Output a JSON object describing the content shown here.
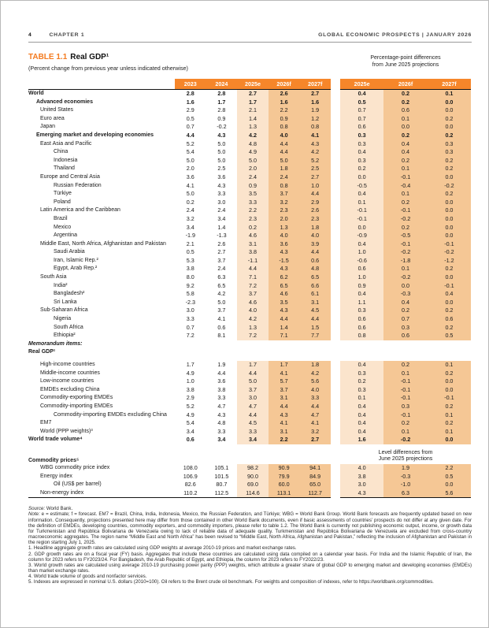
{
  "page_header": {
    "page_number": "4",
    "chapter": "CHAPTER 1",
    "report_title": "GLOBAL ECONOMIC PROSPECTS | JANUARY 2026"
  },
  "table": {
    "title_label": "TABLE 1.1",
    "title_text": "Real GDP¹",
    "subtitle": "(Percent change from previous year unless indicated otherwise)",
    "diff_header_line1": "Percentage-point differences",
    "diff_header_line2": "from June 2025 projections",
    "col_headers_main": [
      "2023",
      "2024",
      "2025e",
      "2026f",
      "2027f"
    ],
    "col_headers_diff": [
      "2025e",
      "2026f",
      "2027f"
    ],
    "rows": [
      {
        "kind": "data",
        "label": "World",
        "indent": 0,
        "bold": true,
        "values": [
          "2.8",
          "2.8",
          "2.7",
          "2.6",
          "2.7"
        ],
        "diffs": [
          "0.4",
          "0.2",
          "0.1"
        ]
      },
      {
        "kind": "data",
        "label": "Advanced economies",
        "indent": 1,
        "bold": true,
        "values": [
          "1.6",
          "1.7",
          "1.7",
          "1.6",
          "1.6"
        ],
        "diffs": [
          "0.5",
          "0.2",
          "0.0"
        ]
      },
      {
        "kind": "data",
        "label": "United States",
        "indent": 2,
        "bold": false,
        "values": [
          "2.9",
          "2.8",
          "2.1",
          "2.2",
          "1.9"
        ],
        "diffs": [
          "0.7",
          "0.6",
          "0.0"
        ]
      },
      {
        "kind": "data",
        "label": "Euro area",
        "indent": 2,
        "bold": false,
        "values": [
          "0.5",
          "0.9",
          "1.4",
          "0.9",
          "1.2"
        ],
        "diffs": [
          "0.7",
          "0.1",
          "0.2"
        ]
      },
      {
        "kind": "data",
        "label": "Japan",
        "indent": 2,
        "bold": false,
        "values": [
          "0.7",
          "-0.2",
          "1.3",
          "0.8",
          "0.8"
        ],
        "diffs": [
          "0.6",
          "0.0",
          "0.0"
        ]
      },
      {
        "kind": "data",
        "label": "Emerging market and developing economies",
        "indent": 1,
        "bold": true,
        "values": [
          "4.4",
          "4.3",
          "4.2",
          "4.0",
          "4.1"
        ],
        "diffs": [
          "0.3",
          "0.2",
          "0.2"
        ]
      },
      {
        "kind": "data",
        "label": "East Asia and Pacific",
        "indent": 2,
        "bold": false,
        "values": [
          "5.2",
          "5.0",
          "4.8",
          "4.4",
          "4.3"
        ],
        "diffs": [
          "0.3",
          "0.4",
          "0.3"
        ]
      },
      {
        "kind": "data",
        "label": "China",
        "indent": 3,
        "bold": false,
        "values": [
          "5.4",
          "5.0",
          "4.9",
          "4.4",
          "4.2"
        ],
        "diffs": [
          "0.4",
          "0.4",
          "0.3"
        ]
      },
      {
        "kind": "data",
        "label": "Indonesia",
        "indent": 3,
        "bold": false,
        "values": [
          "5.0",
          "5.0",
          "5.0",
          "5.0",
          "5.2"
        ],
        "diffs": [
          "0.3",
          "0.2",
          "0.2"
        ]
      },
      {
        "kind": "data",
        "label": "Thailand",
        "indent": 3,
        "bold": false,
        "values": [
          "2.0",
          "2.5",
          "2.0",
          "1.8",
          "2.5"
        ],
        "diffs": [
          "0.2",
          "0.1",
          "0.2"
        ]
      },
      {
        "kind": "data",
        "label": "Europe and Central Asia",
        "indent": 2,
        "bold": false,
        "values": [
          "3.6",
          "3.6",
          "2.4",
          "2.4",
          "2.7"
        ],
        "diffs": [
          "0.0",
          "-0.1",
          "0.0"
        ]
      },
      {
        "kind": "data",
        "label": "Russian Federation",
        "indent": 3,
        "bold": false,
        "values": [
          "4.1",
          "4.3",
          "0.9",
          "0.8",
          "1.0"
        ],
        "diffs": [
          "-0.5",
          "-0.4",
          "-0.2"
        ]
      },
      {
        "kind": "data",
        "label": "Türkiye",
        "indent": 3,
        "bold": false,
        "values": [
          "5.0",
          "3.3",
          "3.5",
          "3.7",
          "4.4"
        ],
        "diffs": [
          "0.4",
          "0.1",
          "0.2"
        ]
      },
      {
        "kind": "data",
        "label": "Poland",
        "indent": 3,
        "bold": false,
        "values": [
          "0.2",
          "3.0",
          "3.3",
          "3.2",
          "2.9"
        ],
        "diffs": [
          "0.1",
          "0.2",
          "0.0"
        ]
      },
      {
        "kind": "data",
        "label": "Latin America and the Caribbean",
        "indent": 2,
        "bold": false,
        "values": [
          "2.4",
          "2.4",
          "2.2",
          "2.3",
          "2.6"
        ],
        "diffs": [
          "-0.1",
          "-0.1",
          "0.0"
        ]
      },
      {
        "kind": "data",
        "label": "Brazil",
        "indent": 3,
        "bold": false,
        "values": [
          "3.2",
          "3.4",
          "2.3",
          "2.0",
          "2.3"
        ],
        "diffs": [
          "-0.1",
          "-0.2",
          "0.0"
        ]
      },
      {
        "kind": "data",
        "label": "Mexico",
        "indent": 3,
        "bold": false,
        "values": [
          "3.4",
          "1.4",
          "0.2",
          "1.3",
          "1.8"
        ],
        "diffs": [
          "0.0",
          "0.2",
          "0.0"
        ]
      },
      {
        "kind": "data",
        "label": "Argentina",
        "indent": 3,
        "bold": false,
        "values": [
          "-1.9",
          "-1.3",
          "4.6",
          "4.0",
          "4.0"
        ],
        "diffs": [
          "-0.9",
          "-0.5",
          "0.0"
        ]
      },
      {
        "kind": "data",
        "label": "Middle East, North Africa, Afghanistan and Pakistan",
        "indent": 2,
        "bold": false,
        "values": [
          "2.1",
          "2.6",
          "3.1",
          "3.6",
          "3.9"
        ],
        "diffs": [
          "0.4",
          "-0.1",
          "-0.1"
        ]
      },
      {
        "kind": "data",
        "label": "Saudi Arabia",
        "indent": 3,
        "bold": false,
        "values": [
          "0.5",
          "2.7",
          "3.8",
          "4.3",
          "4.4"
        ],
        "diffs": [
          "1.0",
          "-0.2",
          "-0.2"
        ]
      },
      {
        "kind": "data",
        "label": "Iran, Islamic Rep.²",
        "indent": 3,
        "bold": false,
        "values": [
          "5.3",
          "3.7",
          "-1.1",
          "-1.5",
          "0.6"
        ],
        "diffs": [
          "-0.6",
          "-1.8",
          "-1.2"
        ]
      },
      {
        "kind": "data",
        "label": "Egypt, Arab Rep.²",
        "indent": 3,
        "bold": false,
        "values": [
          "3.8",
          "2.4",
          "4.4",
          "4.3",
          "4.8"
        ],
        "diffs": [
          "0.6",
          "0.1",
          "0.2"
        ]
      },
      {
        "kind": "data",
        "label": "South Asia",
        "indent": 2,
        "bold": false,
        "values": [
          "8.0",
          "6.3",
          "7.1",
          "6.2",
          "6.5"
        ],
        "diffs": [
          "1.0",
          "-0.2",
          "0.0"
        ]
      },
      {
        "kind": "data",
        "label": "India²",
        "indent": 3,
        "bold": false,
        "values": [
          "9.2",
          "6.5",
          "7.2",
          "6.5",
          "6.6"
        ],
        "diffs": [
          "0.9",
          "0.0",
          "-0.1"
        ]
      },
      {
        "kind": "data",
        "label": "Bangladesh²",
        "indent": 3,
        "bold": false,
        "values": [
          "5.8",
          "4.2",
          "3.7",
          "4.6",
          "6.1"
        ],
        "diffs": [
          "0.4",
          "-0.3",
          "0.4"
        ]
      },
      {
        "kind": "data",
        "label": "Sri Lanka",
        "indent": 3,
        "bold": false,
        "values": [
          "-2.3",
          "5.0",
          "4.6",
          "3.5",
          "3.1"
        ],
        "diffs": [
          "1.1",
          "0.4",
          "0.0"
        ]
      },
      {
        "kind": "data",
        "label": "Sub-Saharan Africa",
        "indent": 2,
        "bold": false,
        "values": [
          "3.0",
          "3.7",
          "4.0",
          "4.3",
          "4.5"
        ],
        "diffs": [
          "0.3",
          "0.2",
          "0.2"
        ]
      },
      {
        "kind": "data",
        "label": "Nigeria",
        "indent": 3,
        "bold": false,
        "values": [
          "3.3",
          "4.1",
          "4.2",
          "4.4",
          "4.4"
        ],
        "diffs": [
          "0.6",
          "0.7",
          "0.6"
        ]
      },
      {
        "kind": "data",
        "label": "South Africa",
        "indent": 3,
        "bold": false,
        "values": [
          "0.7",
          "0.6",
          "1.3",
          "1.4",
          "1.5"
        ],
        "diffs": [
          "0.6",
          "0.3",
          "0.2"
        ]
      },
      {
        "kind": "data",
        "label": "Ethiopia²",
        "indent": 3,
        "bold": false,
        "values": [
          "7.2",
          "8.1",
          "7.2",
          "7.1",
          "7.7"
        ],
        "diffs": [
          "0.8",
          "0.6",
          "0.5"
        ]
      },
      {
        "kind": "section",
        "label": "Memorandum items:",
        "indent": 0,
        "bold": true,
        "italic": true
      },
      {
        "kind": "section",
        "label": "Real GDP¹",
        "indent": 0,
        "bold": true,
        "italic": false
      },
      {
        "kind": "spacer"
      },
      {
        "kind": "data",
        "label": "High-income countries",
        "indent": 2,
        "bold": false,
        "values": [
          "1.7",
          "1.9",
          "1.7",
          "1.7",
          "1.8"
        ],
        "diffs": [
          "0.4",
          "0.2",
          "0.1"
        ]
      },
      {
        "kind": "data",
        "label": "Middle-income countries",
        "indent": 2,
        "bold": false,
        "values": [
          "4.9",
          "4.4",
          "4.4",
          "4.1",
          "4.2"
        ],
        "diffs": [
          "0.3",
          "0.1",
          "0.2"
        ]
      },
      {
        "kind": "data",
        "label": "Low-income countries",
        "indent": 2,
        "bold": false,
        "values": [
          "1.0",
          "3.6",
          "5.0",
          "5.7",
          "5.6"
        ],
        "diffs": [
          "0.2",
          "-0.1",
          "0.0"
        ]
      },
      {
        "kind": "data",
        "label": "EMDEs excluding China",
        "indent": 2,
        "bold": false,
        "values": [
          "3.8",
          "3.8",
          "3.7",
          "3.7",
          "4.0"
        ],
        "diffs": [
          "0.3",
          "-0.1",
          "0.0"
        ]
      },
      {
        "kind": "data",
        "label": "Commodity-exporting EMDEs",
        "indent": 2,
        "bold": false,
        "values": [
          "2.9",
          "3.3",
          "3.0",
          "3.1",
          "3.3"
        ],
        "diffs": [
          "0.1",
          "-0.1",
          "-0.1"
        ]
      },
      {
        "kind": "data",
        "label": "Commodity-importing EMDEs",
        "indent": 2,
        "bold": false,
        "values": [
          "5.2",
          "4.7",
          "4.7",
          "4.4",
          "4.4"
        ],
        "diffs": [
          "0.4",
          "0.3",
          "0.2"
        ]
      },
      {
        "kind": "data",
        "label": "Commodity-importing EMDEs excluding China",
        "indent": 3,
        "bold": false,
        "values": [
          "4.9",
          "4.3",
          "4.4",
          "4.3",
          "4.7"
        ],
        "diffs": [
          "0.4",
          "-0.1",
          "0.1"
        ]
      },
      {
        "kind": "data",
        "label": "EM7",
        "indent": 2,
        "bold": false,
        "values": [
          "5.4",
          "4.8",
          "4.5",
          "4.1",
          "4.1"
        ],
        "diffs": [
          "0.4",
          "0.2",
          "0.2"
        ]
      },
      {
        "kind": "data",
        "label": "World (PPP weights)³",
        "indent": 2,
        "bold": false,
        "values": [
          "3.4",
          "3.3",
          "3.3",
          "3.1",
          "3.2"
        ],
        "diffs": [
          "0.4",
          "0.1",
          "0.1"
        ]
      },
      {
        "kind": "data",
        "label": "World trade volume⁴",
        "indent": 0,
        "bold": true,
        "values": [
          "0.6",
          "3.4",
          "3.4",
          "2.2",
          "2.7"
        ],
        "diffs": [
          "1.6",
          "-0.2",
          "0.0"
        ]
      },
      {
        "kind": "subnote",
        "label": "Commodity prices⁵",
        "note_line1": "Level differences from",
        "note_line2": "June 2025 projections"
      },
      {
        "kind": "data",
        "label": "WBG commodity price index",
        "indent": 2,
        "bold": false,
        "values": [
          "108.0",
          "105.1",
          "98.2",
          "90.9",
          "94.1"
        ],
        "diffs": [
          "4.0",
          "1.9",
          "2.2"
        ]
      },
      {
        "kind": "data",
        "label": "Energy index",
        "indent": 2,
        "bold": false,
        "values": [
          "106.9",
          "101.5",
          "90.0",
          "79.9",
          "84.9"
        ],
        "diffs": [
          "3.8",
          "-0.3",
          "0.5"
        ]
      },
      {
        "kind": "data",
        "label": "Oil (US$ per barrel)",
        "indent": 3,
        "bold": false,
        "values": [
          "82.6",
          "80.7",
          "69.0",
          "60.0",
          "65.0"
        ],
        "diffs": [
          "3.0",
          "-1.0",
          "0.0"
        ]
      },
      {
        "kind": "data",
        "label": "Non-energy index",
        "indent": 2,
        "bold": false,
        "values": [
          "110.2",
          "112.5",
          "114.6",
          "113.1",
          "112.7"
        ],
        "diffs": [
          "4.3",
          "6.3",
          "5.6"
        ],
        "rule_bottom": true
      }
    ]
  },
  "notes": {
    "source_label": "Source:",
    "source_text": "World Bank.",
    "note_label": "Note:",
    "note_text": "e = estimate; f = forecast. EM7 = Brazil, China, India, Indonesia, Mexico, the Russian Federation, and Türkiye; WBG = World Bank Group. World Bank forecasts are frequently updated based on new information. Consequently, projections presented here may differ from those contained in other World Bank documents, even if basic assessments of countries’ prospects do not differ at any given date. For the definition of EMDEs, developing countries, commodity exporters, and commodity importers, please refer to table 1.2. The World Bank is currently not publishing economic output, income, or growth data for Turkmenistan and República Bolivariana de Venezuela owing to lack of reliable data of adequate quality. Turkmenistan and República Bolivariana de Venezuela are excluded from cross-country macroeconomic aggregates. The region name “Middle East and North Africa” has been revised to “Middle East, North Africa, Afghanistan and Pakistan,” reflecting the inclusion of Afghanistan and Pakistan in the region starting July 1, 2025.",
    "footnotes": [
      "1. Headline aggregate growth rates are calculated using GDP weights at average 2010-19 prices and market exchange rates.",
      "2. GDP growth rates are on a fiscal year (FY) basis. Aggregates that include these countries are calculated using data compiled on a calendar year basis. For India and the Islamic Republic of Iran, the column for 2023 refers to FY2023/24. For Bangladesh, the Arab Republic of Egypt, and Ethiopia, the column for 2023 refers to FY2022/23.",
      "3. World growth rates are calculated using average 2010-19 purchasing power parity (PPP) weights, which attribute a greater share of global GDP to emerging market and developing economies (EMDEs) than market exchange rates.",
      "4. World trade volume of goods and nonfactor services.",
      "5. Indexes are expressed in nominal U.S. dollars (2010=100). Oil refers to the Brent crude oil benchmark. For weights and composition of indexes, refer to https://worldbank.org/commodities."
    ]
  }
}
